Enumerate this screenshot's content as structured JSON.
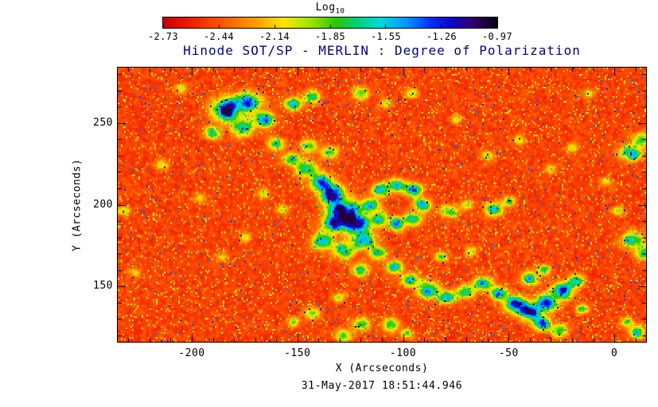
{
  "title": "Hinode SOT/SP - MERLIN : Degree of Polarization",
  "timestamp": "31-May-2017 18:51:44.946",
  "colorbar": {
    "label": "Log",
    "label_sub": "10",
    "tick_labels": [
      "-2.73",
      "-2.44",
      "-2.14",
      "-1.85",
      "-1.55",
      "-1.26",
      "-0.97"
    ],
    "colormap": [
      {
        "t": 0.0,
        "c": "#c80000"
      },
      {
        "t": 0.08,
        "c": "#f01e00"
      },
      {
        "t": 0.18,
        "c": "#ff5a00"
      },
      {
        "t": 0.28,
        "c": "#ffa000"
      },
      {
        "t": 0.36,
        "c": "#ffe600"
      },
      {
        "t": 0.44,
        "c": "#a0e600"
      },
      {
        "t": 0.52,
        "c": "#28c800"
      },
      {
        "t": 0.58,
        "c": "#00d278"
      },
      {
        "t": 0.65,
        "c": "#00dcdc"
      },
      {
        "t": 0.73,
        "c": "#0096ff"
      },
      {
        "t": 0.8,
        "c": "#0032ff"
      },
      {
        "t": 0.87,
        "c": "#1400c8"
      },
      {
        "t": 0.93,
        "c": "#32006e"
      },
      {
        "t": 1.0,
        "c": "#0a000f"
      }
    ]
  },
  "axes": {
    "x": {
      "label": "X (Arcseconds)",
      "tick_labels": [
        "-200",
        "-150",
        "-100",
        "-50",
        "0"
      ],
      "tick_values": [
        -200,
        -150,
        -100,
        -50,
        0
      ]
    },
    "y": {
      "label": "Y (Arcseconds)",
      "tick_labels": [
        "150",
        "200",
        "250"
      ],
      "tick_values": [
        150,
        200,
        250
      ]
    }
  },
  "chart_data": {
    "type": "heatmap",
    "title": "Hinode SOT/SP - MERLIN : Degree of Polarization",
    "xlabel": "X (Arcseconds)",
    "ylabel": "Y (Arcseconds)",
    "value_label": "Log10 Degree of Polarization",
    "xlim": [
      -235,
      15
    ],
    "ylim": [
      116,
      284
    ],
    "value_range": [
      -2.73,
      -0.97
    ],
    "colorbar_ticks": [
      -2.73,
      -2.44,
      -2.14,
      -1.85,
      -1.55,
      -1.26,
      -0.97
    ],
    "background_range": [
      -2.64,
      -2.34
    ],
    "noise_seed": 11,
    "network_blobs": [
      [
        -183,
        258,
        7,
        1.3
      ],
      [
        -173,
        263,
        6,
        1.1
      ],
      [
        -166,
        252,
        5,
        1.0
      ],
      [
        -176,
        247,
        5,
        0.9
      ],
      [
        -152,
        262,
        4,
        0.9
      ],
      [
        -143,
        266,
        4,
        0.7
      ],
      [
        -190,
        244,
        4,
        0.7
      ],
      [
        -160,
        237,
        4,
        0.8
      ],
      [
        -205,
        271,
        3,
        0.5
      ],
      [
        -120,
        268,
        4,
        0.6
      ],
      [
        -108,
        262,
        3,
        0.5
      ],
      [
        -96,
        268,
        3,
        0.5
      ],
      [
        -12,
        268,
        3,
        0.4
      ],
      [
        -146,
        222,
        5,
        0.9
      ],
      [
        -139,
        214,
        5,
        1.0
      ],
      [
        -133,
        206,
        6,
        1.2
      ],
      [
        -128,
        196,
        7,
        1.5
      ],
      [
        -122,
        188,
        6,
        1.4
      ],
      [
        -133,
        188,
        5,
        1.1
      ],
      [
        -138,
        178,
        5,
        1.0
      ],
      [
        -128,
        172,
        5,
        1.0
      ],
      [
        -118,
        178,
        5,
        1.1
      ],
      [
        -112,
        170,
        4,
        0.9
      ],
      [
        -135,
        232,
        4,
        0.8
      ],
      [
        -145,
        236,
        4,
        0.7
      ],
      [
        -153,
        228,
        4,
        0.7
      ],
      [
        -120,
        160,
        4,
        0.8
      ],
      [
        -91,
        200,
        4,
        1.0
      ],
      [
        -95,
        209,
        4,
        1.0
      ],
      [
        -103,
        212,
        4,
        1.0
      ],
      [
        -111,
        209,
        4,
        1.0
      ],
      [
        -115,
        200,
        4,
        1.0
      ],
      [
        -111,
        191,
        4,
        1.0
      ],
      [
        -103,
        188,
        4,
        1.0
      ],
      [
        -95,
        191,
        4,
        1.0
      ],
      [
        -78,
        196,
        4,
        0.8
      ],
      [
        -70,
        200,
        3,
        0.6
      ],
      [
        -57,
        197,
        4,
        0.9
      ],
      [
        -50,
        202,
        3,
        0.7
      ],
      [
        -82,
        168,
        3,
        0.6
      ],
      [
        -68,
        171,
        3,
        0.5
      ],
      [
        -104,
        162,
        4,
        0.8
      ],
      [
        -97,
        154,
        4,
        0.9
      ],
      [
        -88,
        148,
        5,
        1.0
      ],
      [
        -79,
        143,
        4,
        0.9
      ],
      [
        -70,
        147,
        4,
        0.9
      ],
      [
        -62,
        152,
        4,
        1.0
      ],
      [
        -55,
        146,
        4,
        1.0
      ],
      [
        -47,
        139,
        5,
        1.2
      ],
      [
        -40,
        134,
        5,
        1.3
      ],
      [
        -32,
        140,
        5,
        1.4
      ],
      [
        -25,
        147,
        5,
        1.2
      ],
      [
        -18,
        153,
        4,
        0.9
      ],
      [
        -34,
        127,
        4,
        1.0
      ],
      [
        -26,
        123,
        4,
        0.8
      ],
      [
        -40,
        155,
        4,
        1.0
      ],
      [
        -33,
        160,
        3,
        0.8
      ],
      [
        -15,
        136,
        3,
        0.7
      ],
      [
        -120,
        127,
        4,
        0.7
      ],
      [
        -106,
        126,
        4,
        0.8
      ],
      [
        -98,
        121,
        3,
        0.7
      ],
      [
        -128,
        120,
        4,
        0.6
      ],
      [
        -143,
        133,
        4,
        0.6
      ],
      [
        -152,
        128,
        3,
        0.5
      ],
      [
        -130,
        143,
        3,
        0.5
      ],
      [
        8,
        232,
        5,
        1.0
      ],
      [
        13,
        240,
        4,
        0.8
      ],
      [
        9,
        178,
        5,
        1.0
      ],
      [
        14,
        170,
        4,
        0.8
      ],
      [
        11,
        122,
        4,
        0.8
      ],
      [
        6,
        128,
        3,
        0.6
      ],
      [
        -4,
        214,
        3,
        0.5
      ],
      [
        2,
        196,
        3,
        0.5
      ],
      [
        -214,
        224,
        3,
        0.5
      ],
      [
        -196,
        204,
        3,
        0.4
      ],
      [
        -227,
        158,
        3,
        0.4
      ],
      [
        -175,
        180,
        3,
        0.4
      ],
      [
        -186,
        168,
        3,
        0.4
      ],
      [
        -232,
        196,
        3,
        0.5
      ],
      [
        -60,
        230,
        3,
        0.5
      ],
      [
        -45,
        240,
        3,
        0.4
      ],
      [
        -75,
        252,
        3,
        0.4
      ],
      [
        -30,
        222,
        3,
        0.4
      ],
      [
        -20,
        235,
        3,
        0.4
      ],
      [
        -157,
        197,
        3,
        0.5
      ],
      [
        -166,
        207,
        3,
        0.5
      ]
    ]
  }
}
